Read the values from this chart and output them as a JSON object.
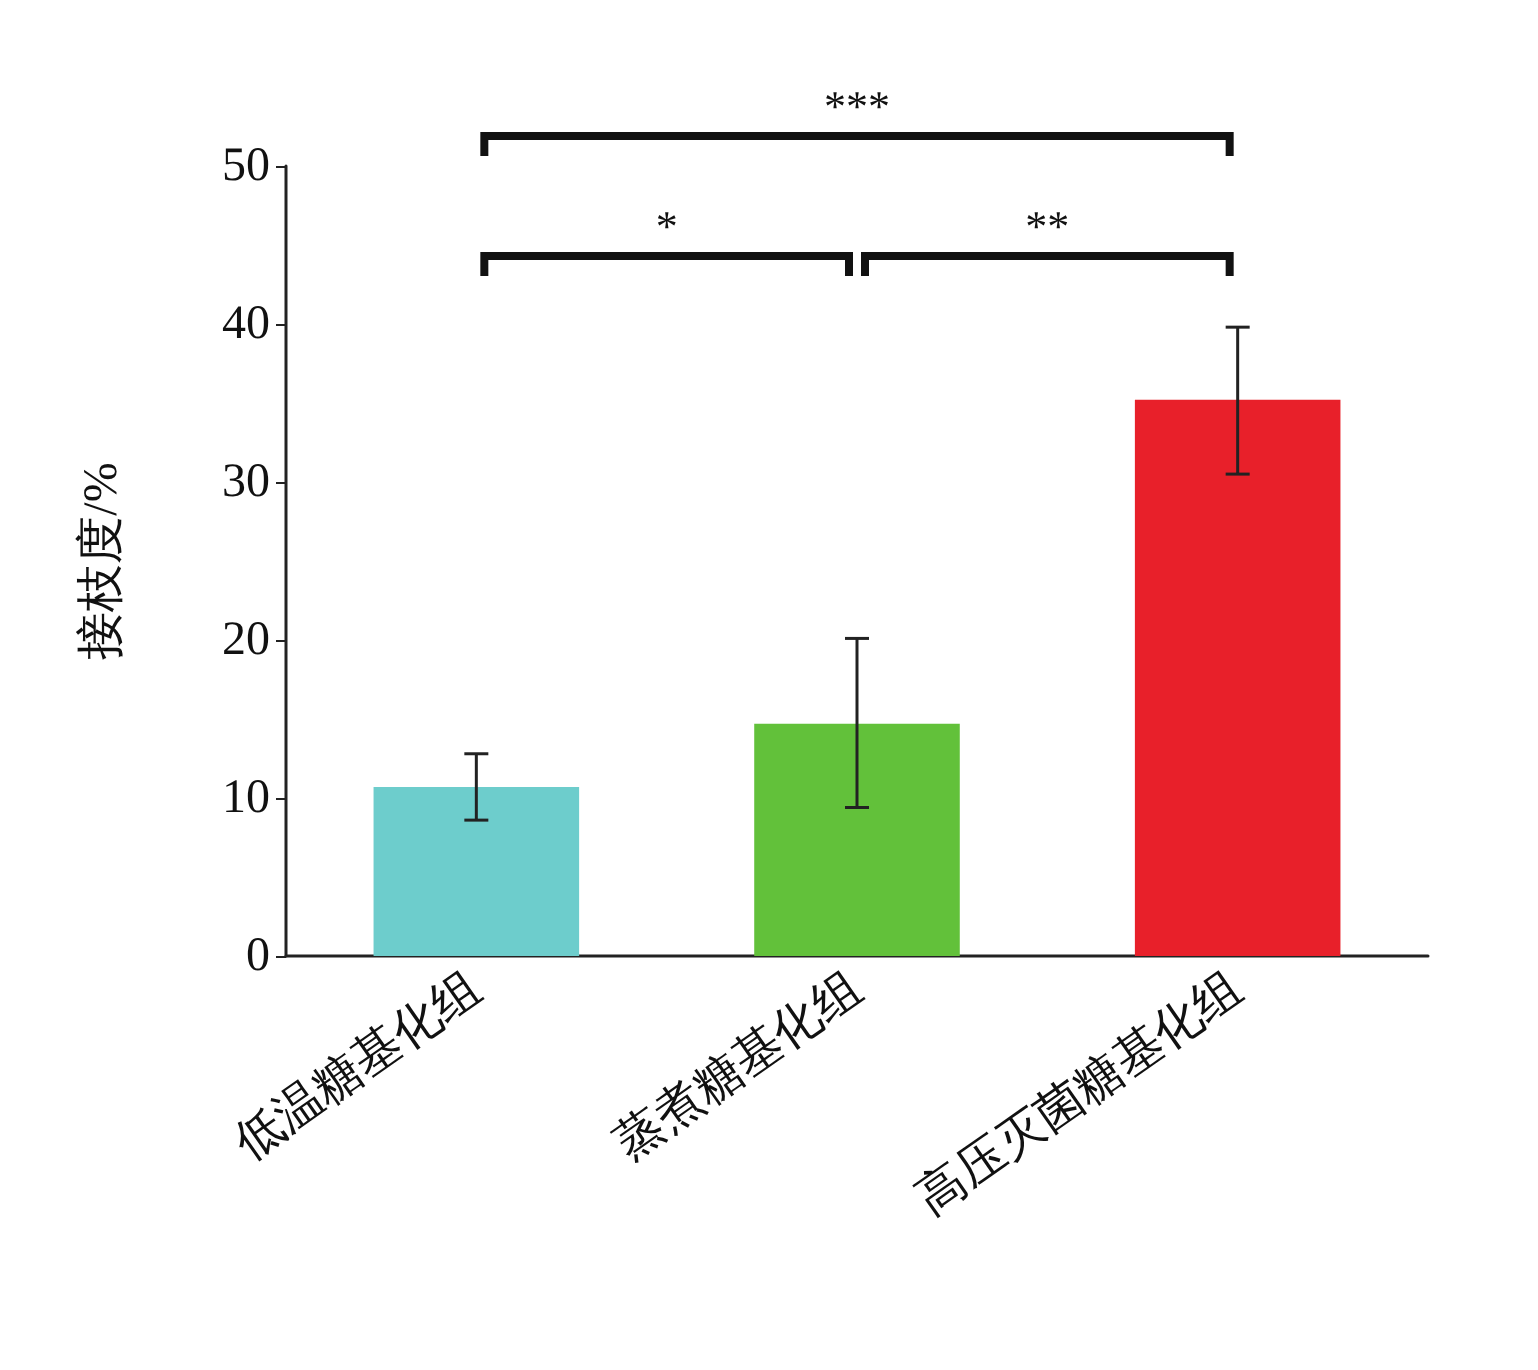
{
  "chart_data": {
    "type": "bar",
    "ylabel": "接枝度/%",
    "categories": [
      "低温糖基化组",
      "蒸煮糖基化组",
      "高压灭菌糖基化组"
    ],
    "values": [
      10.7,
      14.7,
      35.2
    ],
    "colors": [
      "#6dcdcc",
      "#62c13a",
      "#e8202a"
    ],
    "errors": [
      [
        8.6,
        12.8
      ],
      [
        9.4,
        20.1
      ],
      [
        30.5,
        39.8
      ]
    ],
    "ylim": [
      0,
      50
    ],
    "yticks": [
      0,
      10,
      20,
      30,
      40,
      50
    ],
    "grid": false,
    "annotations": [
      "*",
      "**",
      "***"
    ]
  }
}
